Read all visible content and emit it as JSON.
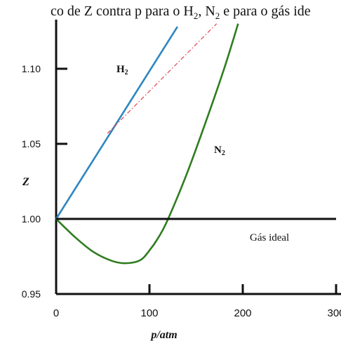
{
  "chart_data": {
    "type": "line",
    "title_parts": [
      "co de Z contra p  para o H",
      "2",
      ", N",
      "2",
      " e para o gás ide"
    ],
    "xlabel": "p/atm",
    "ylabel": "Z",
    "xlim": [
      0,
      300
    ],
    "ylim": [
      0.95,
      1.13
    ],
    "x_ticks": [
      {
        "value": 0,
        "label": "0"
      },
      {
        "value": 100,
        "label": "100"
      },
      {
        "value": 200,
        "label": "200"
      },
      {
        "value": 300,
        "label": "300"
      }
    ],
    "y_ticks": [
      {
        "value": 0.95,
        "label": "0.95"
      },
      {
        "value": 1.0,
        "label": "1.00"
      },
      {
        "value": 1.05,
        "label": "1.05"
      },
      {
        "value": 1.1,
        "label": "1.10"
      }
    ],
    "series": [
      {
        "name": "H2",
        "label_main": "H",
        "label_sub": "2",
        "color": "#2e86c1",
        "style": "solid",
        "x": [
          0,
          130
        ],
        "y": [
          1.0,
          1.128
        ]
      },
      {
        "name": "",
        "color": "#e0404a",
        "style": "dashdot",
        "x": [
          55,
          172
        ],
        "y": [
          1.057,
          1.13
        ]
      },
      {
        "name": "N2",
        "label_main": "N",
        "label_sub": "2",
        "color": "#2e7d1f",
        "style": "solid",
        "x": [
          0,
          20,
          40,
          60,
          75,
          90,
          100,
          110,
          120,
          140,
          160,
          180,
          195
        ],
        "y": [
          1.0,
          0.988,
          0.978,
          0.972,
          0.9705,
          0.9725,
          0.979,
          0.988,
          1.0,
          1.03,
          1.064,
          1.1,
          1.13
        ]
      },
      {
        "name": "Gás ideal",
        "color": "#111111",
        "style": "solid",
        "x": [
          0,
          300
        ],
        "y": [
          1.0,
          1.0
        ]
      }
    ],
    "grid": false
  }
}
